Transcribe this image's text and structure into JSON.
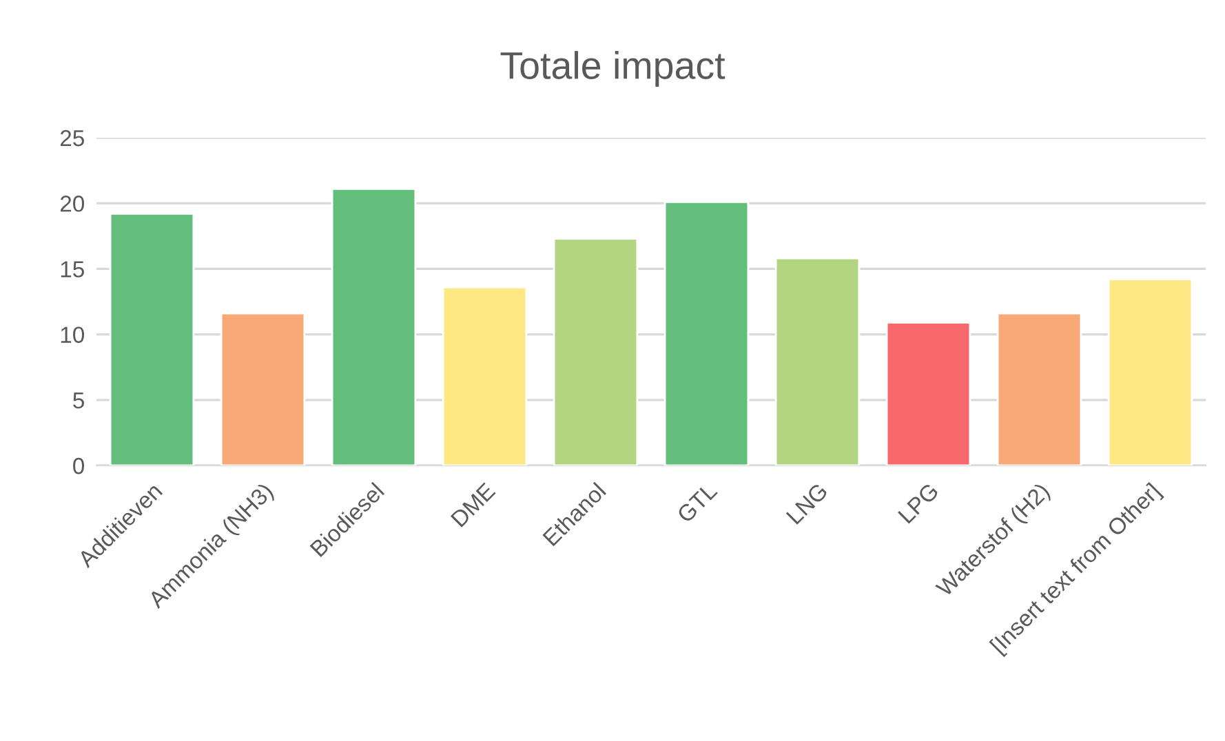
{
  "chart_data": {
    "type": "bar",
    "title": "Totale impact",
    "categories": [
      "Additieven",
      "Ammonia (NH3)",
      "Biodiesel",
      "DME",
      "Ethanol",
      "GTL",
      "LNG",
      "LPG",
      "Waterstof (H2)",
      "[Insert text from Other]"
    ],
    "values": [
      19.2,
      11.6,
      21.1,
      13.6,
      17.3,
      20.1,
      15.8,
      10.9,
      11.6,
      14.2
    ],
    "colors": [
      "#63be7b",
      "#f9a977",
      "#63be7b",
      "#fde883",
      "#b1d580",
      "#63be7b",
      "#b1d580",
      "#f8696b",
      "#f9a977",
      "#fde883"
    ],
    "ylim": [
      0,
      25
    ],
    "yticks": [
      0,
      5,
      10,
      15,
      20,
      25
    ],
    "grid": "y"
  }
}
